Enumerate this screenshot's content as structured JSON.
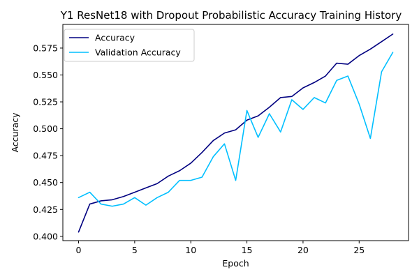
{
  "chart_data": {
    "type": "line",
    "title": "Y1 ResNet18 with Dropout Probabilistic Accuracy Training History",
    "xlabel": "Epoch",
    "ylabel": "Accuracy",
    "xlim": [
      -1.4,
      29.4
    ],
    "ylim": [
      0.396,
      0.597
    ],
    "x_ticks": [
      0,
      5,
      10,
      15,
      20,
      25
    ],
    "y_ticks": [
      0.4,
      0.425,
      0.45,
      0.475,
      0.5,
      0.525,
      0.55,
      0.575
    ],
    "x_tick_labels": [
      "0",
      "5",
      "10",
      "15",
      "20",
      "25"
    ],
    "y_tick_labels": [
      "0.400",
      "0.425",
      "0.450",
      "0.475",
      "0.500",
      "0.525",
      "0.550",
      "0.575"
    ],
    "grid": false,
    "legend_position": "upper-left",
    "x": [
      0,
      1,
      2,
      3,
      4,
      5,
      6,
      7,
      8,
      9,
      10,
      11,
      12,
      13,
      14,
      15,
      16,
      17,
      18,
      19,
      20,
      21,
      22,
      23,
      24,
      25,
      26,
      27,
      28
    ],
    "series": [
      {
        "name": "Accuracy",
        "color": "#000080",
        "values": [
          0.404,
          0.43,
          0.433,
          0.434,
          0.437,
          0.441,
          0.445,
          0.449,
          0.456,
          0.461,
          0.468,
          0.478,
          0.489,
          0.496,
          0.499,
          0.508,
          0.512,
          0.52,
          0.529,
          0.53,
          0.538,
          0.543,
          0.549,
          0.561,
          0.56,
          0.568,
          0.574,
          0.581,
          0.588
        ]
      },
      {
        "name": "Validation Accuracy",
        "color": "#00BFFF",
        "values": [
          0.436,
          0.441,
          0.43,
          0.428,
          0.43,
          0.436,
          0.429,
          0.436,
          0.441,
          0.452,
          0.452,
          0.455,
          0.474,
          0.486,
          0.452,
          0.517,
          0.492,
          0.514,
          0.497,
          0.527,
          0.518,
          0.529,
          0.524,
          0.545,
          0.549,
          0.523,
          0.491,
          0.553,
          0.571
        ]
      }
    ]
  }
}
